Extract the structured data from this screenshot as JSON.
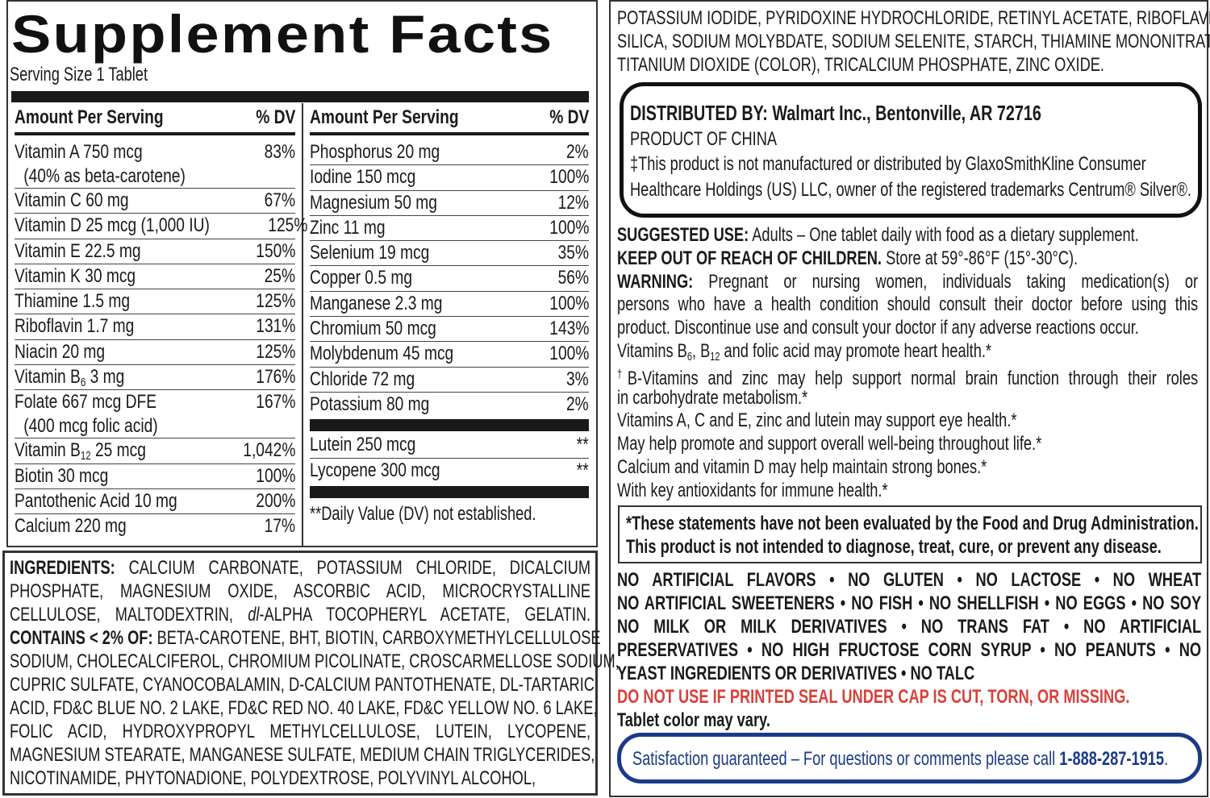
{
  "facts": {
    "title": "Supplement Facts",
    "serving": "Serving Size 1 Tablet",
    "header": {
      "amount": "Amount Per Serving",
      "dv": "% DV"
    },
    "left_rows": [
      {
        "name": [
          {
            "t": "Vitamin A 750 mcg"
          }
        ],
        "note": "(40% as beta-carotene)",
        "dv": "83%"
      },
      {
        "name": [
          {
            "t": "Vitamin C 60 mg"
          }
        ],
        "dv": "67%"
      },
      {
        "name": [
          {
            "t": "Vitamin D 25 mcg (1,000 IU)"
          }
        ],
        "dv": "125%"
      },
      {
        "name": [
          {
            "t": "Vitamin E 22.5 mg"
          }
        ],
        "dv": "150%"
      },
      {
        "name": [
          {
            "t": "Vitamin K 30 mcg"
          }
        ],
        "dv": "25%"
      },
      {
        "name": [
          {
            "t": "Thiamine 1.5 mg"
          }
        ],
        "dv": "125%"
      },
      {
        "name": [
          {
            "t": "Riboflavin 1.7 mg"
          }
        ],
        "dv": "131%"
      },
      {
        "name": [
          {
            "t": "Niacin 20 mg"
          }
        ],
        "dv": "125%"
      },
      {
        "name": [
          {
            "t": "Vitamin B"
          },
          {
            "t": "6",
            "sub": true
          },
          {
            "t": " 3 mg"
          }
        ],
        "dv": "176%"
      },
      {
        "name": [
          {
            "t": "Folate 667 mcg DFE"
          }
        ],
        "note": "(400 mcg folic acid)",
        "dv": "167%"
      },
      {
        "name": [
          {
            "t": "Vitamin B"
          },
          {
            "t": "12",
            "sub": true
          },
          {
            "t": " 25 mcg"
          }
        ],
        "dv": "1,042%"
      },
      {
        "name": [
          {
            "t": "Biotin 30 mcg"
          }
        ],
        "dv": "100%"
      },
      {
        "name": [
          {
            "t": "Pantothenic Acid 10 mg"
          }
        ],
        "dv": "200%"
      },
      {
        "name": [
          {
            "t": "Calcium 220 mg"
          }
        ],
        "dv": "17%"
      }
    ],
    "right_rows": [
      {
        "name": [
          {
            "t": "Phosphorus 20 mg"
          }
        ],
        "dv": "2%"
      },
      {
        "name": [
          {
            "t": "Iodine 150 mcg"
          }
        ],
        "dv": "100%"
      },
      {
        "name": [
          {
            "t": "Magnesium 50 mg"
          }
        ],
        "dv": "12%"
      },
      {
        "name": [
          {
            "t": "Zinc 11 mg"
          }
        ],
        "dv": "100%"
      },
      {
        "name": [
          {
            "t": "Selenium 19 mcg"
          }
        ],
        "dv": "35%"
      },
      {
        "name": [
          {
            "t": "Copper 0.5 mg"
          }
        ],
        "dv": "56%"
      },
      {
        "name": [
          {
            "t": "Manganese 2.3 mg"
          }
        ],
        "dv": "100%"
      },
      {
        "name": [
          {
            "t": "Chromium 50 mcg"
          }
        ],
        "dv": "143%"
      },
      {
        "name": [
          {
            "t": "Molybdenum 45 mcg"
          }
        ],
        "dv": "100%"
      },
      {
        "name": [
          {
            "t": "Chloride 72 mg"
          }
        ],
        "dv": "3%"
      },
      {
        "name": [
          {
            "t": "Potassium 80 mg"
          }
        ],
        "dv": "2%"
      }
    ],
    "other_rows": [
      {
        "name": [
          {
            "t": "Lutein 250 mcg"
          }
        ],
        "dv": "**"
      },
      {
        "name": [
          {
            "t": "Lycopene 300 mcg"
          }
        ],
        "dv": "**"
      }
    ],
    "footnote": "**Daily Value (DV) not established."
  },
  "ingredients": [
    {
      "j": true,
      "s": [
        {
          "t": "INGREDIENTS:",
          "b": true
        },
        {
          "t": " CALCIUM CARBONATE, POTASSIUM CHLORIDE, DICALCIUM"
        }
      ]
    },
    {
      "j": true,
      "s": [
        {
          "t": "PHOSPHATE, MAGNESIUM OXIDE, ASCORBIC ACID, MICROCRYSTALLINE"
        }
      ]
    },
    {
      "j": true,
      "s": [
        {
          "t": "CELLULOSE, MALTODEXTRIN, "
        },
        {
          "t": "dl",
          "i": true
        },
        {
          "t": "-ALPHA TOCOPHERYL ACETATE, GELATIN."
        }
      ]
    },
    {
      "j": true,
      "s": [
        {
          "t": "CONTAINS < 2% OF:",
          "b": true
        },
        {
          "t": " BETA-CAROTENE, BHT, BIOTIN, CARBOXYMETHYLCELLULOSE"
        }
      ]
    },
    {
      "j": true,
      "s": [
        {
          "t": "SODIUM, CHOLECALCIFEROL, CHROMIUM PICOLINATE, CROSCARMELLOSE SODIUM,"
        }
      ]
    },
    {
      "j": true,
      "s": [
        {
          "t": "CUPRIC SULFATE, CYANOCOBALAMIN, D-CALCIUM PANTOTHENATE, DL-TARTARIC"
        }
      ]
    },
    {
      "j": true,
      "s": [
        {
          "t": "ACID, FD&C BLUE NO. 2 LAKE, FD&C RED NO. 40 LAKE, FD&C YELLOW NO. 6 LAKE,"
        }
      ]
    },
    {
      "j": true,
      "s": [
        {
          "t": "FOLIC ACID, HYDROXYPROPYL METHYLCELLULOSE, LUTEIN, LYCOPENE,"
        }
      ]
    },
    {
      "j": true,
      "s": [
        {
          "t": "MAGNESIUM STEARATE, MANGANESE SULFATE, MEDIUM CHAIN TRIGLYCERIDES,"
        }
      ]
    },
    {
      "j": false,
      "s": [
        {
          "t": "NICOTINAMIDE, PHYTONADIONE, POLYDEXTROSE, POLYVINYL ALCOHOL,"
        }
      ]
    }
  ],
  "ingredients_cont": [
    {
      "j": true,
      "s": [
        {
          "t": "POTASSIUM IODIDE, PYRIDOXINE HYDROCHLORIDE, RETINYL ACETATE, RIBOFLAVIN,"
        }
      ]
    },
    {
      "j": true,
      "s": [
        {
          "t": "SILICA, SODIUM MOLYBDATE, SODIUM SELENITE, STARCH, THIAMINE MONONITRATE,"
        }
      ]
    },
    {
      "j": false,
      "s": [
        {
          "t": "TITANIUM DIOXIDE (COLOR), TRICALCIUM PHOSPHATE, ZINC OXIDE."
        }
      ]
    }
  ],
  "distributor": [
    {
      "j": false,
      "s": [
        {
          "t": "DISTRIBUTED BY: Walmart Inc., Bentonville, AR 72716",
          "b": true
        }
      ]
    },
    {
      "j": false,
      "s": [
        {
          "t": "PRODUCT OF CHINA"
        }
      ]
    },
    {
      "j": false,
      "s": [
        {
          "t": "‡This product is not manufactured or distributed by GlaxoSmithKline Consumer"
        }
      ]
    },
    {
      "j": true,
      "s": [
        {
          "t": "Healthcare Holdings (US) LLC, owner of the registered trademarks Centrum® Silver®."
        }
      ]
    }
  ],
  "usage": [
    {
      "j": false,
      "s": [
        {
          "t": "SUGGESTED USE:",
          "b": true
        },
        {
          "t": " Adults – One tablet daily with food as a dietary supplement."
        }
      ]
    },
    {
      "j": false,
      "s": [
        {
          "t": "KEEP OUT OF REACH OF CHILDREN.",
          "b": true
        },
        {
          "t": " Store at 59°-86°F (15°-30°C)."
        }
      ]
    },
    {
      "j": true,
      "s": [
        {
          "t": "WARNING:",
          "b": true
        },
        {
          "t": " Pregnant or nursing women, individuals taking medication(s) or"
        }
      ]
    },
    {
      "j": true,
      "s": [
        {
          "t": "persons who have a health condition should consult their doctor before using this"
        }
      ]
    },
    {
      "j": false,
      "s": [
        {
          "t": "product. Discontinue use and consult your doctor if any adverse reactions occur."
        }
      ]
    },
    {
      "j": false,
      "s": [
        {
          "t": "Vitamins B"
        },
        {
          "t": "6",
          "sub": true
        },
        {
          "t": ", B"
        },
        {
          "t": "12",
          "sub": true
        },
        {
          "t": " and folic acid may promote heart health.*"
        }
      ]
    },
    {
      "j": true,
      "s": [
        {
          "t": "†",
          "sup": true
        },
        {
          "t": "B-Vitamins and zinc may help support normal brain function through their roles"
        }
      ]
    },
    {
      "j": false,
      "s": [
        {
          "t": "in carbohydrate metabolism.*"
        }
      ]
    },
    {
      "j": false,
      "s": [
        {
          "t": "Vitamins A, C and E, zinc and lutein may support eye health.*"
        }
      ]
    },
    {
      "j": false,
      "s": [
        {
          "t": "May help promote and support overall well-being throughout life.*"
        }
      ]
    },
    {
      "j": false,
      "s": [
        {
          "t": "Calcium and vitamin D may help maintain strong bones.*"
        }
      ]
    },
    {
      "j": false,
      "s": [
        {
          "t": "With key antioxidants for immune health.*"
        }
      ]
    }
  ],
  "statement": [
    {
      "j": true,
      "s": [
        {
          "t": "*These statements have not been evaluated by the Food and Drug Administration.",
          "b": true
        }
      ]
    },
    {
      "j": false,
      "s": [
        {
          "t": "This product is not intended to diagnose, treat, cure, or prevent any disease.",
          "b": true
        }
      ]
    }
  ],
  "free_from": [
    {
      "j": true,
      "s": [
        {
          "t": "NO ARTIFICIAL FLAVORS • NO GLUTEN • NO LACTOSE • NO WHEAT",
          "b": true
        }
      ]
    },
    {
      "j": true,
      "s": [
        {
          "t": "NO ARTIFICIAL SWEETENERS • NO FISH • NO SHELLFISH • NO EGGS • NO SOY",
          "b": true
        }
      ]
    },
    {
      "j": true,
      "s": [
        {
          "t": "NO MILK OR MILK DERIVATIVES • NO TRANS FAT • NO ARTIFICIAL",
          "b": true
        }
      ]
    },
    {
      "j": true,
      "s": [
        {
          "t": "PRESERVATIVES • NO HIGH FRUCTOSE CORN SYRUP • NO PEANUTS • NO",
          "b": true
        }
      ]
    },
    {
      "j": false,
      "s": [
        {
          "t": "YEAST INGREDIENTS OR DERIVATIVES • NO TALC",
          "b": true
        }
      ]
    },
    {
      "j": false,
      "s": [
        {
          "t": "DO NOT USE IF PRINTED SEAL UNDER CAP IS CUT, TORN, OR MISSING.",
          "red": true
        }
      ]
    },
    {
      "j": false,
      "s": [
        {
          "t": "Tablet color may vary.",
          "b": true
        }
      ]
    }
  ],
  "guarantee": {
    "text": "Satisfaction guaranteed – For questions or comments please call ",
    "phone": "1-888-287-1915",
    "end": "."
  },
  "colors": {
    "warning": "#d9413a",
    "guarantee": "#1a3a8a",
    "text": "#1a1a1a"
  }
}
